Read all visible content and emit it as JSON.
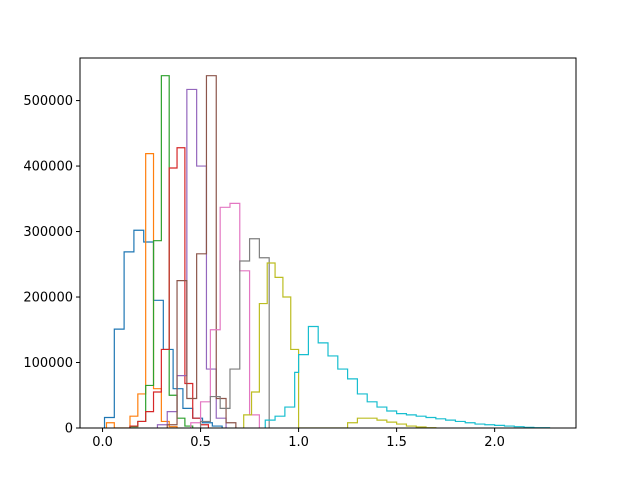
{
  "chart_data": {
    "type": "histogram",
    "histtype": "step",
    "title": "",
    "xlabel": "",
    "ylabel": "",
    "xlim": [
      -0.115,
      2.415
    ],
    "ylim": [
      0,
      565000
    ],
    "xticks": [
      0.0,
      0.5,
      1.0,
      1.5,
      2.0
    ],
    "xtick_labels": [
      "0.0",
      "0.5",
      "1.0",
      "1.5",
      "2.0"
    ],
    "yticks": [
      0,
      100000,
      200000,
      300000,
      400000,
      500000
    ],
    "ytick_labels": [
      "0",
      "100000",
      "200000",
      "300000",
      "400000",
      "500000"
    ],
    "grid": false,
    "legend": "none",
    "series": [
      {
        "color": "#1f77b4",
        "edges": [
          0.01,
          0.06,
          0.11,
          0.16,
          0.21,
          0.26,
          0.31,
          0.36,
          0.41,
          0.46,
          0.51,
          0.56,
          0.61
        ],
        "counts": [
          16000,
          151000,
          269000,
          302000,
          284000,
          195000,
          120000,
          60000,
          30000,
          15000,
          8000,
          3000
        ]
      },
      {
        "color": "#ff7f0e",
        "edges": [
          0.02,
          0.06,
          0.1,
          0.14,
          0.18,
          0.22,
          0.26,
          0.3,
          0.34,
          0.38
        ],
        "counts": [
          8000,
          0,
          0,
          18000,
          52000,
          419000,
          60000,
          10000,
          2000
        ]
      },
      {
        "color": "#2ca02c",
        "edges": [
          0.14,
          0.18,
          0.22,
          0.26,
          0.3,
          0.34,
          0.38,
          0.42,
          0.46
        ],
        "counts": [
          2000,
          10000,
          65000,
          286000,
          538000,
          50000,
          15000,
          3000
        ]
      },
      {
        "color": "#d62728",
        "edges": [
          0.14,
          0.18,
          0.22,
          0.26,
          0.3,
          0.34,
          0.38,
          0.42,
          0.46,
          0.5,
          0.54
        ],
        "counts": [
          3000,
          10000,
          25000,
          55000,
          120000,
          397000,
          428000,
          68000,
          15000,
          5000
        ]
      },
      {
        "color": "#9467bd",
        "edges": [
          0.28,
          0.33,
          0.38,
          0.43,
          0.48,
          0.53,
          0.58,
          0.63
        ],
        "counts": [
          5000,
          25000,
          80000,
          517000,
          400000,
          90000,
          15000
        ]
      },
      {
        "color": "#8c564b",
        "edges": [
          0.33,
          0.38,
          0.43,
          0.48,
          0.53,
          0.58,
          0.63,
          0.68
        ],
        "counts": [
          5000,
          225000,
          45000,
          266000,
          538000,
          45000,
          8000
        ]
      },
      {
        "color": "#e377c2",
        "edges": [
          0.45,
          0.5,
          0.55,
          0.6,
          0.65,
          0.7,
          0.75,
          0.8
        ],
        "counts": [
          8000,
          40000,
          150000,
          337000,
          343000,
          240000,
          20000
        ]
      },
      {
        "color": "#7f7f7f",
        "edges": [
          0.5,
          0.55,
          0.6,
          0.65,
          0.7,
          0.75,
          0.8,
          0.85
        ],
        "counts": [
          10000,
          48000,
          30000,
          90000,
          255000,
          289000,
          260000
        ]
      },
      {
        "color": "#bcbd22",
        "edges": [
          0.72,
          0.76,
          0.8,
          0.84,
          0.88,
          0.92,
          0.96,
          1.0,
          1.05,
          1.1,
          1.15,
          1.2,
          1.25,
          1.3,
          1.35,
          1.4,
          1.45,
          1.5,
          1.55,
          1.6,
          1.65,
          1.7
        ],
        "counts": [
          20000,
          55000,
          190000,
          252000,
          230000,
          200000,
          120000,
          0,
          0,
          0,
          0,
          0,
          8000,
          15000,
          15000,
          12000,
          9000,
          6000,
          3000,
          1500,
          500
        ]
      },
      {
        "color": "#17becf",
        "edges": [
          0.83,
          0.88,
          0.93,
          0.98,
          1.0,
          1.05,
          1.1,
          1.15,
          1.2,
          1.25,
          1.3,
          1.35,
          1.4,
          1.45,
          1.5,
          1.55,
          1.6,
          1.65,
          1.7,
          1.75,
          1.8,
          1.85,
          1.9,
          1.95,
          2.0,
          2.05,
          2.1,
          2.15,
          2.2,
          2.28
        ],
        "counts": [
          12000,
          18000,
          32000,
          85000,
          112000,
          155000,
          130000,
          110000,
          90000,
          75000,
          52000,
          40000,
          32000,
          26000,
          22000,
          20000,
          18000,
          16000,
          14000,
          12000,
          10000,
          8000,
          6000,
          5000,
          4000,
          3000,
          2000,
          1000,
          500
        ]
      }
    ]
  }
}
